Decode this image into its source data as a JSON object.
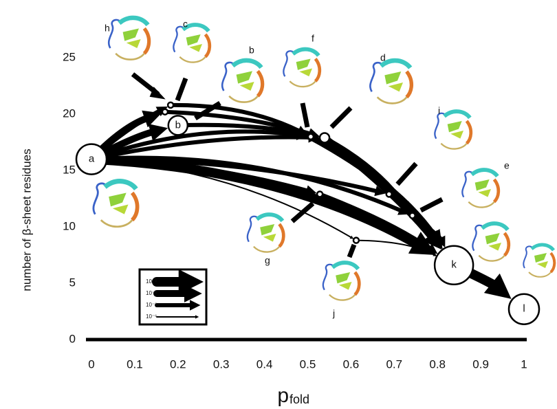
{
  "chart_data": {
    "type": "network",
    "x_label": "p",
    "x_label_sub": "fold",
    "y_label": "number of β-sheet residues",
    "xlim": [
      0,
      1
    ],
    "ylim": [
      0,
      28.5
    ],
    "xticks": [
      0,
      0.1,
      0.2,
      0.3,
      0.4,
      0.5,
      0.6,
      0.7,
      0.8,
      0.9,
      1
    ],
    "yticks": [
      0,
      5,
      10,
      15,
      20,
      25
    ],
    "nodes": [
      {
        "label": "a",
        "x": 0.0,
        "y": 16.0,
        "size": 22
      },
      {
        "label": "b",
        "x": 0.2,
        "y": 19.0,
        "size": 14
      },
      {
        "label": "h",
        "x": 0.17,
        "y": 20.2,
        "size": 4
      },
      {
        "label": "c",
        "x": 0.183,
        "y": 20.8,
        "size": 4
      },
      {
        "label": "f",
        "x": 0.507,
        "y": 18.0,
        "size": 4
      },
      {
        "label": "d",
        "x": 0.539,
        "y": 17.9,
        "size": 7
      },
      {
        "label": "i",
        "x": 0.688,
        "y": 12.9,
        "size": 4
      },
      {
        "label": "g",
        "x": 0.528,
        "y": 12.9,
        "size": 4
      },
      {
        "label": "e",
        "x": 0.742,
        "y": 11.0,
        "size": 4
      },
      {
        "label": "j",
        "x": 0.612,
        "y": 8.8,
        "size": 4
      },
      {
        "label": "k",
        "x": 0.838,
        "y": 6.6,
        "size": 28
      },
      {
        "label": "l",
        "x": 1.0,
        "y": 2.7,
        "size": 22
      }
    ],
    "edges": [
      {
        "from": 0,
        "to": 1,
        "flux": 0.0001
      },
      {
        "from": 0,
        "to": 2,
        "flux": 0.0001
      },
      {
        "from": 0,
        "to": 3,
        "flux": 1e-05
      },
      {
        "from": 0,
        "to": 4,
        "flux": 1e-05
      },
      {
        "from": 0,
        "to": 5,
        "flux": 1e-05
      },
      {
        "from": 0,
        "to": 10,
        "flux": 0.001
      },
      {
        "from": 0,
        "to": 7,
        "flux": 1e-05
      },
      {
        "from": 0,
        "to": 9,
        "flux": 1e-06
      },
      {
        "from": 0,
        "to": 6,
        "flux": 1e-05
      },
      {
        "from": 0,
        "to": 8,
        "flux": 1e-05
      },
      {
        "from": 1,
        "to": 5,
        "flux": 1e-05
      },
      {
        "from": 3,
        "to": 4,
        "flux": 1e-05
      },
      {
        "from": 2,
        "to": 5,
        "flux": 1e-05
      },
      {
        "from": 4,
        "to": 10,
        "flux": 0.0001
      },
      {
        "from": 5,
        "to": 10,
        "flux": 0.0001
      },
      {
        "from": 5,
        "to": 8,
        "flux": 1e-05
      },
      {
        "from": 7,
        "to": 10,
        "flux": 1e-05
      },
      {
        "from": 9,
        "to": 10,
        "flux": 1e-06
      },
      {
        "from": 6,
        "to": 10,
        "flux": 1e-05
      },
      {
        "from": 8,
        "to": 10,
        "flux": 1e-05
      },
      {
        "from": 10,
        "to": 11,
        "flux": 0.001
      }
    ],
    "legend": [
      {
        "label": "10⁻³",
        "flux": 0.001
      },
      {
        "label": "10⁻⁴",
        "flux": 0.0001
      },
      {
        "label": "10⁻⁵",
        "flux": 1e-05
      },
      {
        "label": "10⁻⁶",
        "flux": 1e-06
      }
    ]
  }
}
